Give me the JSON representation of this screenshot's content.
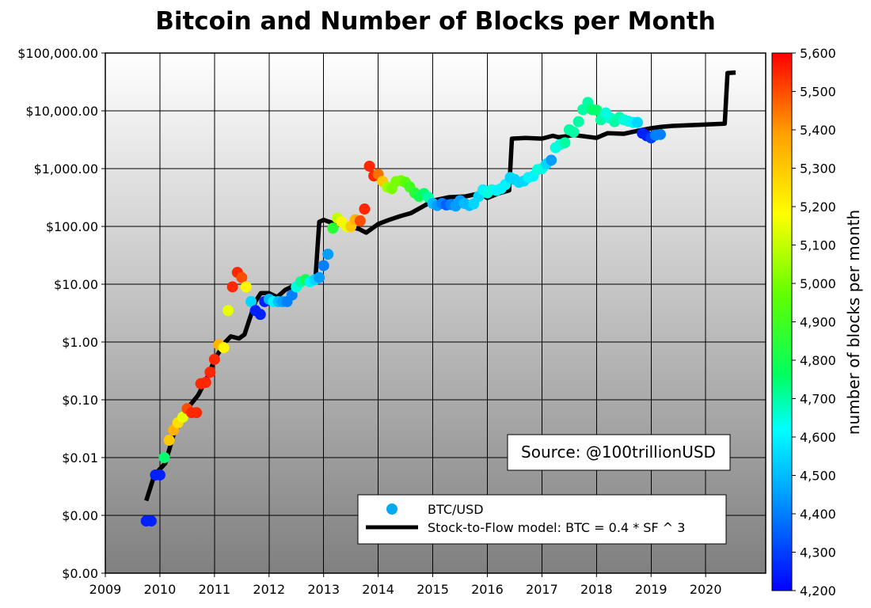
{
  "chart_data": {
    "type": "scatter",
    "title": "Bitcoin and Number of Blocks per Month",
    "xlabel": "",
    "ylabel": "",
    "x_ticks": [
      "2009",
      "2010",
      "2011",
      "2012",
      "2013",
      "2014",
      "2015",
      "2016",
      "2017",
      "2018",
      "2019",
      "2020"
    ],
    "xlim": [
      2009,
      2021.1
    ],
    "y_scale": "log",
    "ylim": [
      0.0001,
      100000
    ],
    "y_ticks": [
      {
        "value": 0.0001,
        "label": "$0.00"
      },
      {
        "value": 0.001,
        "label": "$0.00"
      },
      {
        "value": 0.01,
        "label": "$0.01"
      },
      {
        "value": 0.1,
        "label": "$0.10"
      },
      {
        "value": 1,
        "label": "$1.00"
      },
      {
        "value": 10,
        "label": "$10.00"
      },
      {
        "value": 100,
        "label": "$100.00"
      },
      {
        "value": 1000,
        "label": "$1,000.00"
      },
      {
        "value": 10000,
        "label": "$10,000.00"
      },
      {
        "value": 100000,
        "label": "$100,000.00"
      }
    ],
    "grid": true,
    "colorbar": {
      "label": "number of blocks per month",
      "min": 4200,
      "max": 5600,
      "ticks": [
        "4,200",
        "4,300",
        "4,400",
        "4,500",
        "4,600",
        "4,700",
        "4,800",
        "4,900",
        "5,000",
        "5,100",
        "5,200",
        "5,300",
        "5,400",
        "5,500",
        "5,600"
      ],
      "colormap": [
        "#0000ff",
        "#00a0ff",
        "#00ffff",
        "#00ff60",
        "#60ff00",
        "#ffff00",
        "#ffa000",
        "#ff0000"
      ]
    },
    "annotation": "Source: @100trillionUSD",
    "legend": {
      "placement": "bottom-right",
      "entries": [
        {
          "label": "BTC/USD",
          "marker": "circle",
          "color": "#00aaee"
        },
        {
          "label": "Stock-to-Flow model: BTC = 0.4 * SF ^ 3",
          "marker": "line",
          "color": "#000000"
        }
      ]
    },
    "series": [
      {
        "name": "BTC/USD",
        "kind": "scatter",
        "points": [
          {
            "x": 2009.75,
            "y": 0.0008,
            "blocks": 4250
          },
          {
            "x": 2009.84,
            "y": 0.0008,
            "blocks": 4250
          },
          {
            "x": 2009.92,
            "y": 0.005,
            "blocks": 4250
          },
          {
            "x": 2010.0,
            "y": 0.005,
            "blocks": 4250
          },
          {
            "x": 2010.08,
            "y": 0.01,
            "blocks": 4750
          },
          {
            "x": 2010.17,
            "y": 0.02,
            "blocks": 5300
          },
          {
            "x": 2010.25,
            "y": 0.03,
            "blocks": 5350
          },
          {
            "x": 2010.33,
            "y": 0.04,
            "blocks": 5250
          },
          {
            "x": 2010.42,
            "y": 0.05,
            "blocks": 5150
          },
          {
            "x": 2010.5,
            "y": 0.07,
            "blocks": 5500
          },
          {
            "x": 2010.58,
            "y": 0.06,
            "blocks": 5550
          },
          {
            "x": 2010.67,
            "y": 0.06,
            "blocks": 5550
          },
          {
            "x": 2010.75,
            "y": 0.19,
            "blocks": 5550
          },
          {
            "x": 2010.84,
            "y": 0.2,
            "blocks": 5550
          },
          {
            "x": 2010.92,
            "y": 0.3,
            "blocks": 5550
          },
          {
            "x": 2011.0,
            "y": 0.5,
            "blocks": 5550
          },
          {
            "x": 2011.08,
            "y": 0.9,
            "blocks": 5350
          },
          {
            "x": 2011.17,
            "y": 0.8,
            "blocks": 5200
          },
          {
            "x": 2011.25,
            "y": 3.5,
            "blocks": 5150
          },
          {
            "x": 2011.33,
            "y": 9.0,
            "blocks": 5550
          },
          {
            "x": 2011.42,
            "y": 16.0,
            "blocks": 5550
          },
          {
            "x": 2011.5,
            "y": 13.0,
            "blocks": 5500
          },
          {
            "x": 2011.58,
            "y": 9.0,
            "blocks": 5200
          },
          {
            "x": 2011.67,
            "y": 5.0,
            "blocks": 4550
          },
          {
            "x": 2011.75,
            "y": 3.5,
            "blocks": 4250
          },
          {
            "x": 2011.84,
            "y": 3.0,
            "blocks": 4250
          },
          {
            "x": 2011.92,
            "y": 5.0,
            "blocks": 4250
          },
          {
            "x": 2012.0,
            "y": 5.5,
            "blocks": 4500
          },
          {
            "x": 2012.08,
            "y": 5.0,
            "blocks": 4600
          },
          {
            "x": 2012.17,
            "y": 5.0,
            "blocks": 4500
          },
          {
            "x": 2012.25,
            "y": 5.0,
            "blocks": 4450
          },
          {
            "x": 2012.33,
            "y": 5.0,
            "blocks": 4400
          },
          {
            "x": 2012.42,
            "y": 6.5,
            "blocks": 4400
          },
          {
            "x": 2012.5,
            "y": 9.0,
            "blocks": 4650
          },
          {
            "x": 2012.58,
            "y": 11.0,
            "blocks": 4700
          },
          {
            "x": 2012.67,
            "y": 12.0,
            "blocks": 4800
          },
          {
            "x": 2012.75,
            "y": 11.0,
            "blocks": 4600
          },
          {
            "x": 2012.84,
            "y": 12.0,
            "blocks": 4550
          },
          {
            "x": 2012.92,
            "y": 13.0,
            "blocks": 4450
          },
          {
            "x": 2013.0,
            "y": 21.0,
            "blocks": 4400
          },
          {
            "x": 2013.08,
            "y": 33.0,
            "blocks": 4450
          },
          {
            "x": 2013.17,
            "y": 93.0,
            "blocks": 4850
          },
          {
            "x": 2013.25,
            "y": 140.0,
            "blocks": 5100
          },
          {
            "x": 2013.33,
            "y": 120.0,
            "blocks": 5200
          },
          {
            "x": 2013.42,
            "y": 100.0,
            "blocks": 5150
          },
          {
            "x": 2013.5,
            "y": 100.0,
            "blocks": 5300
          },
          {
            "x": 2013.58,
            "y": 130.0,
            "blocks": 5350
          },
          {
            "x": 2013.67,
            "y": 125.0,
            "blocks": 5500
          },
          {
            "x": 2013.75,
            "y": 200.0,
            "blocks": 5550
          },
          {
            "x": 2013.84,
            "y": 1100.0,
            "blocks": 5550
          },
          {
            "x": 2013.92,
            "y": 750.0,
            "blocks": 5550
          },
          {
            "x": 2014.0,
            "y": 800.0,
            "blocks": 5450
          },
          {
            "x": 2014.08,
            "y": 600.0,
            "blocks": 5300
          },
          {
            "x": 2014.17,
            "y": 480.0,
            "blocks": 5050
          },
          {
            "x": 2014.25,
            "y": 450.0,
            "blocks": 5000
          },
          {
            "x": 2014.33,
            "y": 600.0,
            "blocks": 5000
          },
          {
            "x": 2014.42,
            "y": 620.0,
            "blocks": 5000
          },
          {
            "x": 2014.5,
            "y": 580.0,
            "blocks": 4950
          },
          {
            "x": 2014.58,
            "y": 480.0,
            "blocks": 4900
          },
          {
            "x": 2014.67,
            "y": 380.0,
            "blocks": 4850
          },
          {
            "x": 2014.75,
            "y": 330.0,
            "blocks": 4800
          },
          {
            "x": 2014.84,
            "y": 370.0,
            "blocks": 4750
          },
          {
            "x": 2014.92,
            "y": 320.0,
            "blocks": 4700
          },
          {
            "x": 2015.0,
            "y": 250.0,
            "blocks": 4500
          },
          {
            "x": 2015.08,
            "y": 230.0,
            "blocks": 4450
          },
          {
            "x": 2015.17,
            "y": 250.0,
            "blocks": 4400
          },
          {
            "x": 2015.25,
            "y": 235.0,
            "blocks": 4350
          },
          {
            "x": 2015.33,
            "y": 240.0,
            "blocks": 4400
          },
          {
            "x": 2015.42,
            "y": 225.0,
            "blocks": 4450
          },
          {
            "x": 2015.5,
            "y": 280.0,
            "blocks": 4450
          },
          {
            "x": 2015.58,
            "y": 250.0,
            "blocks": 4500
          },
          {
            "x": 2015.67,
            "y": 230.0,
            "blocks": 4500
          },
          {
            "x": 2015.75,
            "y": 245.0,
            "blocks": 4550
          },
          {
            "x": 2015.84,
            "y": 330.0,
            "blocks": 4550
          },
          {
            "x": 2015.92,
            "y": 430.0,
            "blocks": 4600
          },
          {
            "x": 2016.0,
            "y": 380.0,
            "blocks": 4650
          },
          {
            "x": 2016.08,
            "y": 430.0,
            "blocks": 4650
          },
          {
            "x": 2016.17,
            "y": 420.0,
            "blocks": 4600
          },
          {
            "x": 2016.25,
            "y": 450.0,
            "blocks": 4600
          },
          {
            "x": 2016.33,
            "y": 530.0,
            "blocks": 4600
          },
          {
            "x": 2016.42,
            "y": 700.0,
            "blocks": 4550
          },
          {
            "x": 2016.5,
            "y": 650.0,
            "blocks": 4550
          },
          {
            "x": 2016.58,
            "y": 580.0,
            "blocks": 4550
          },
          {
            "x": 2016.67,
            "y": 610.0,
            "blocks": 4550
          },
          {
            "x": 2016.75,
            "y": 700.0,
            "blocks": 4600
          },
          {
            "x": 2016.84,
            "y": 740.0,
            "blocks": 4600
          },
          {
            "x": 2016.92,
            "y": 960.0,
            "blocks": 4650
          },
          {
            "x": 2017.0,
            "y": 1000.0,
            "blocks": 4650
          },
          {
            "x": 2017.08,
            "y": 1200.0,
            "blocks": 4550
          },
          {
            "x": 2017.17,
            "y": 1400.0,
            "blocks": 4450
          },
          {
            "x": 2017.25,
            "y": 2300.0,
            "blocks": 4650
          },
          {
            "x": 2017.33,
            "y": 2600.0,
            "blocks": 4650
          },
          {
            "x": 2017.42,
            "y": 2800.0,
            "blocks": 4700
          },
          {
            "x": 2017.5,
            "y": 4700.0,
            "blocks": 4700
          },
          {
            "x": 2017.58,
            "y": 4300.0,
            "blocks": 4700
          },
          {
            "x": 2017.67,
            "y": 6500.0,
            "blocks": 4700
          },
          {
            "x": 2017.75,
            "y": 10500.0,
            "blocks": 4700
          },
          {
            "x": 2017.84,
            "y": 14000.0,
            "blocks": 4700
          },
          {
            "x": 2017.92,
            "y": 10500.0,
            "blocks": 4750
          },
          {
            "x": 2018.0,
            "y": 10300.0,
            "blocks": 4750
          },
          {
            "x": 2018.08,
            "y": 7000.0,
            "blocks": 4700
          },
          {
            "x": 2018.17,
            "y": 9200.0,
            "blocks": 4650
          },
          {
            "x": 2018.25,
            "y": 7500.0,
            "blocks": 4650
          },
          {
            "x": 2018.33,
            "y": 6500.0,
            "blocks": 4700
          },
          {
            "x": 2018.42,
            "y": 7700.0,
            "blocks": 4700
          },
          {
            "x": 2018.5,
            "y": 7000.0,
            "blocks": 4650
          },
          {
            "x": 2018.58,
            "y": 6600.0,
            "blocks": 4650
          },
          {
            "x": 2018.67,
            "y": 6300.0,
            "blocks": 4600
          },
          {
            "x": 2018.75,
            "y": 6300.0,
            "blocks": 4550
          },
          {
            "x": 2018.84,
            "y": 4100.0,
            "blocks": 4250
          },
          {
            "x": 2018.92,
            "y": 3700.0,
            "blocks": 4250
          },
          {
            "x": 2019.0,
            "y": 3400.0,
            "blocks": 4300
          },
          {
            "x": 2019.08,
            "y": 3800.0,
            "blocks": 4400
          },
          {
            "x": 2019.17,
            "y": 3900.0,
            "blocks": 4400
          }
        ]
      },
      {
        "name": "Stock-to-Flow model: BTC = 0.4 * SF ^ 3",
        "kind": "line",
        "color": "#000000",
        "points": [
          {
            "x": 2009.75,
            "y": 0.0018
          },
          {
            "x": 2009.9,
            "y": 0.005
          },
          {
            "x": 2010.1,
            "y": 0.008
          },
          {
            "x": 2010.25,
            "y": 0.025
          },
          {
            "x": 2010.5,
            "y": 0.07
          },
          {
            "x": 2010.7,
            "y": 0.12
          },
          {
            "x": 2010.9,
            "y": 0.28
          },
          {
            "x": 2011.0,
            "y": 0.5
          },
          {
            "x": 2011.2,
            "y": 1.0
          },
          {
            "x": 2011.3,
            "y": 1.25
          },
          {
            "x": 2011.45,
            "y": 1.15
          },
          {
            "x": 2011.55,
            "y": 1.35
          },
          {
            "x": 2011.75,
            "y": 5.0
          },
          {
            "x": 2011.85,
            "y": 7.0
          },
          {
            "x": 2012.0,
            "y": 7.0
          },
          {
            "x": 2012.15,
            "y": 6.0
          },
          {
            "x": 2012.3,
            "y": 8.0
          },
          {
            "x": 2012.6,
            "y": 11.0
          },
          {
            "x": 2012.85,
            "y": 12.5
          },
          {
            "x": 2012.92,
            "y": 120.0
          },
          {
            "x": 2013.0,
            "y": 130.0
          },
          {
            "x": 2013.1,
            "y": 120.0
          },
          {
            "x": 2013.25,
            "y": 110.0
          },
          {
            "x": 2013.45,
            "y": 100.0
          },
          {
            "x": 2013.65,
            "y": 90.0
          },
          {
            "x": 2013.78,
            "y": 78.0
          },
          {
            "x": 2014.0,
            "y": 110.0
          },
          {
            "x": 2014.2,
            "y": 130.0
          },
          {
            "x": 2014.4,
            "y": 150.0
          },
          {
            "x": 2014.6,
            "y": 170.0
          },
          {
            "x": 2014.85,
            "y": 230.0
          },
          {
            "x": 2015.0,
            "y": 280.0
          },
          {
            "x": 2015.3,
            "y": 320.0
          },
          {
            "x": 2015.6,
            "y": 330.0
          },
          {
            "x": 2015.85,
            "y": 370.0
          },
          {
            "x": 2016.0,
            "y": 310.0
          },
          {
            "x": 2016.2,
            "y": 370.0
          },
          {
            "x": 2016.4,
            "y": 420.0
          },
          {
            "x": 2016.45,
            "y": 3300.0
          },
          {
            "x": 2016.7,
            "y": 3400.0
          },
          {
            "x": 2017.0,
            "y": 3300.0
          },
          {
            "x": 2017.2,
            "y": 3700.0
          },
          {
            "x": 2017.3,
            "y": 3500.0
          },
          {
            "x": 2017.6,
            "y": 3800.0
          },
          {
            "x": 2018.0,
            "y": 3400.0
          },
          {
            "x": 2018.2,
            "y": 4100.0
          },
          {
            "x": 2018.5,
            "y": 4000.0
          },
          {
            "x": 2018.8,
            "y": 4600.0
          },
          {
            "x": 2019.0,
            "y": 5000.0
          },
          {
            "x": 2019.2,
            "y": 5300.0
          },
          {
            "x": 2019.4,
            "y": 5500.0
          },
          {
            "x": 2020.0,
            "y": 5800.0
          },
          {
            "x": 2020.35,
            "y": 6000.0
          },
          {
            "x": 2020.4,
            "y": 45000.0
          },
          {
            "x": 2020.55,
            "y": 46000.0
          }
        ]
      }
    ]
  }
}
